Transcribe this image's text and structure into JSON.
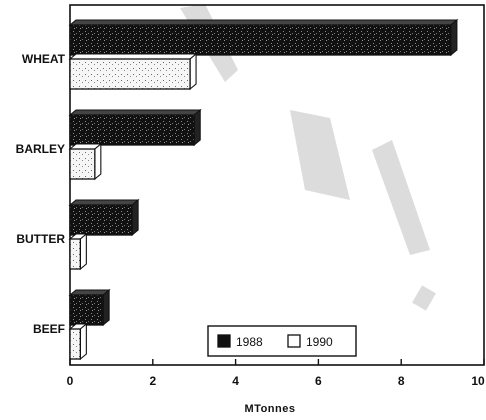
{
  "chart_data": {
    "type": "bar",
    "orientation": "horizontal",
    "categories": [
      "WHEAT",
      "BARLEY",
      "BUTTER",
      "BEEF"
    ],
    "series": [
      {
        "name": "1988",
        "values": [
          9.2,
          3.0,
          1.5,
          0.8
        ],
        "color": "#111111"
      },
      {
        "name": "1990",
        "values": [
          2.9,
          0.6,
          0.25,
          0.25
        ],
        "color": "#f4f4f4"
      }
    ],
    "xlabel": "MTonnes",
    "xlim": [
      0,
      10
    ],
    "xticks": [
      "0",
      "2",
      "4",
      "6",
      "8",
      "10"
    ],
    "grid": false,
    "legend_position": "bottom-right"
  }
}
